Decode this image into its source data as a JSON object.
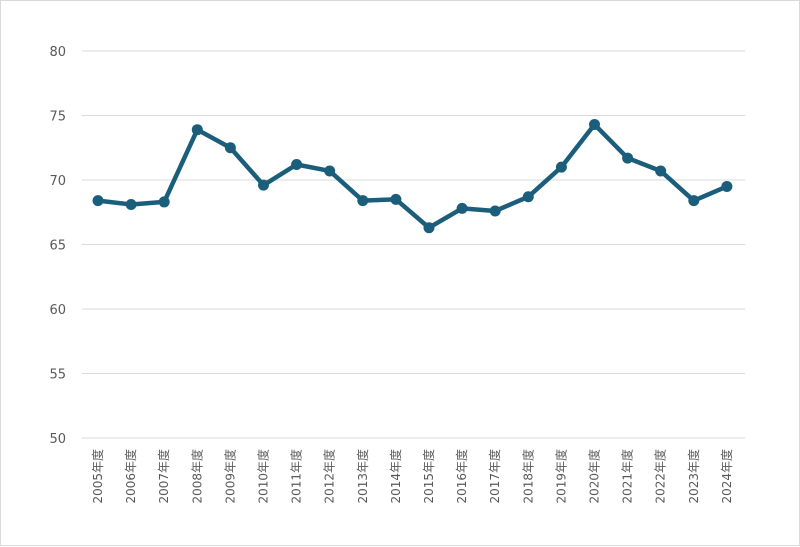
{
  "colors": {
    "series": "#1b5e7b",
    "grid": "#d9d9d9",
    "tick_text": "#595959"
  },
  "chart_data": {
    "type": "line",
    "grid": true,
    "legend": "none",
    "x": [
      "2005年度",
      "2006年度",
      "2007年度",
      "2008年度",
      "2009年度",
      "2010年度",
      "2011年度",
      "2012年度",
      "2013年度",
      "2014年度",
      "2015年度",
      "2016年度",
      "2017年度",
      "2018年度",
      "2019年度",
      "2020年度",
      "2021年度",
      "2022年度",
      "2023年度",
      "2024年度"
    ],
    "series": [
      {
        "values": [
          68.4,
          68.1,
          68.3,
          73.9,
          72.5,
          69.6,
          71.2,
          70.7,
          68.4,
          68.5,
          66.3,
          67.8,
          67.6,
          68.7,
          71.0,
          74.3,
          71.7,
          70.7,
          68.4,
          69.5
        ]
      }
    ],
    "ylim": [
      50,
      80
    ],
    "yticks": [
      "50",
      "55",
      "60",
      "65",
      "70",
      "75",
      "80"
    ],
    "title": "",
    "xlabel": "",
    "ylabel": ""
  }
}
